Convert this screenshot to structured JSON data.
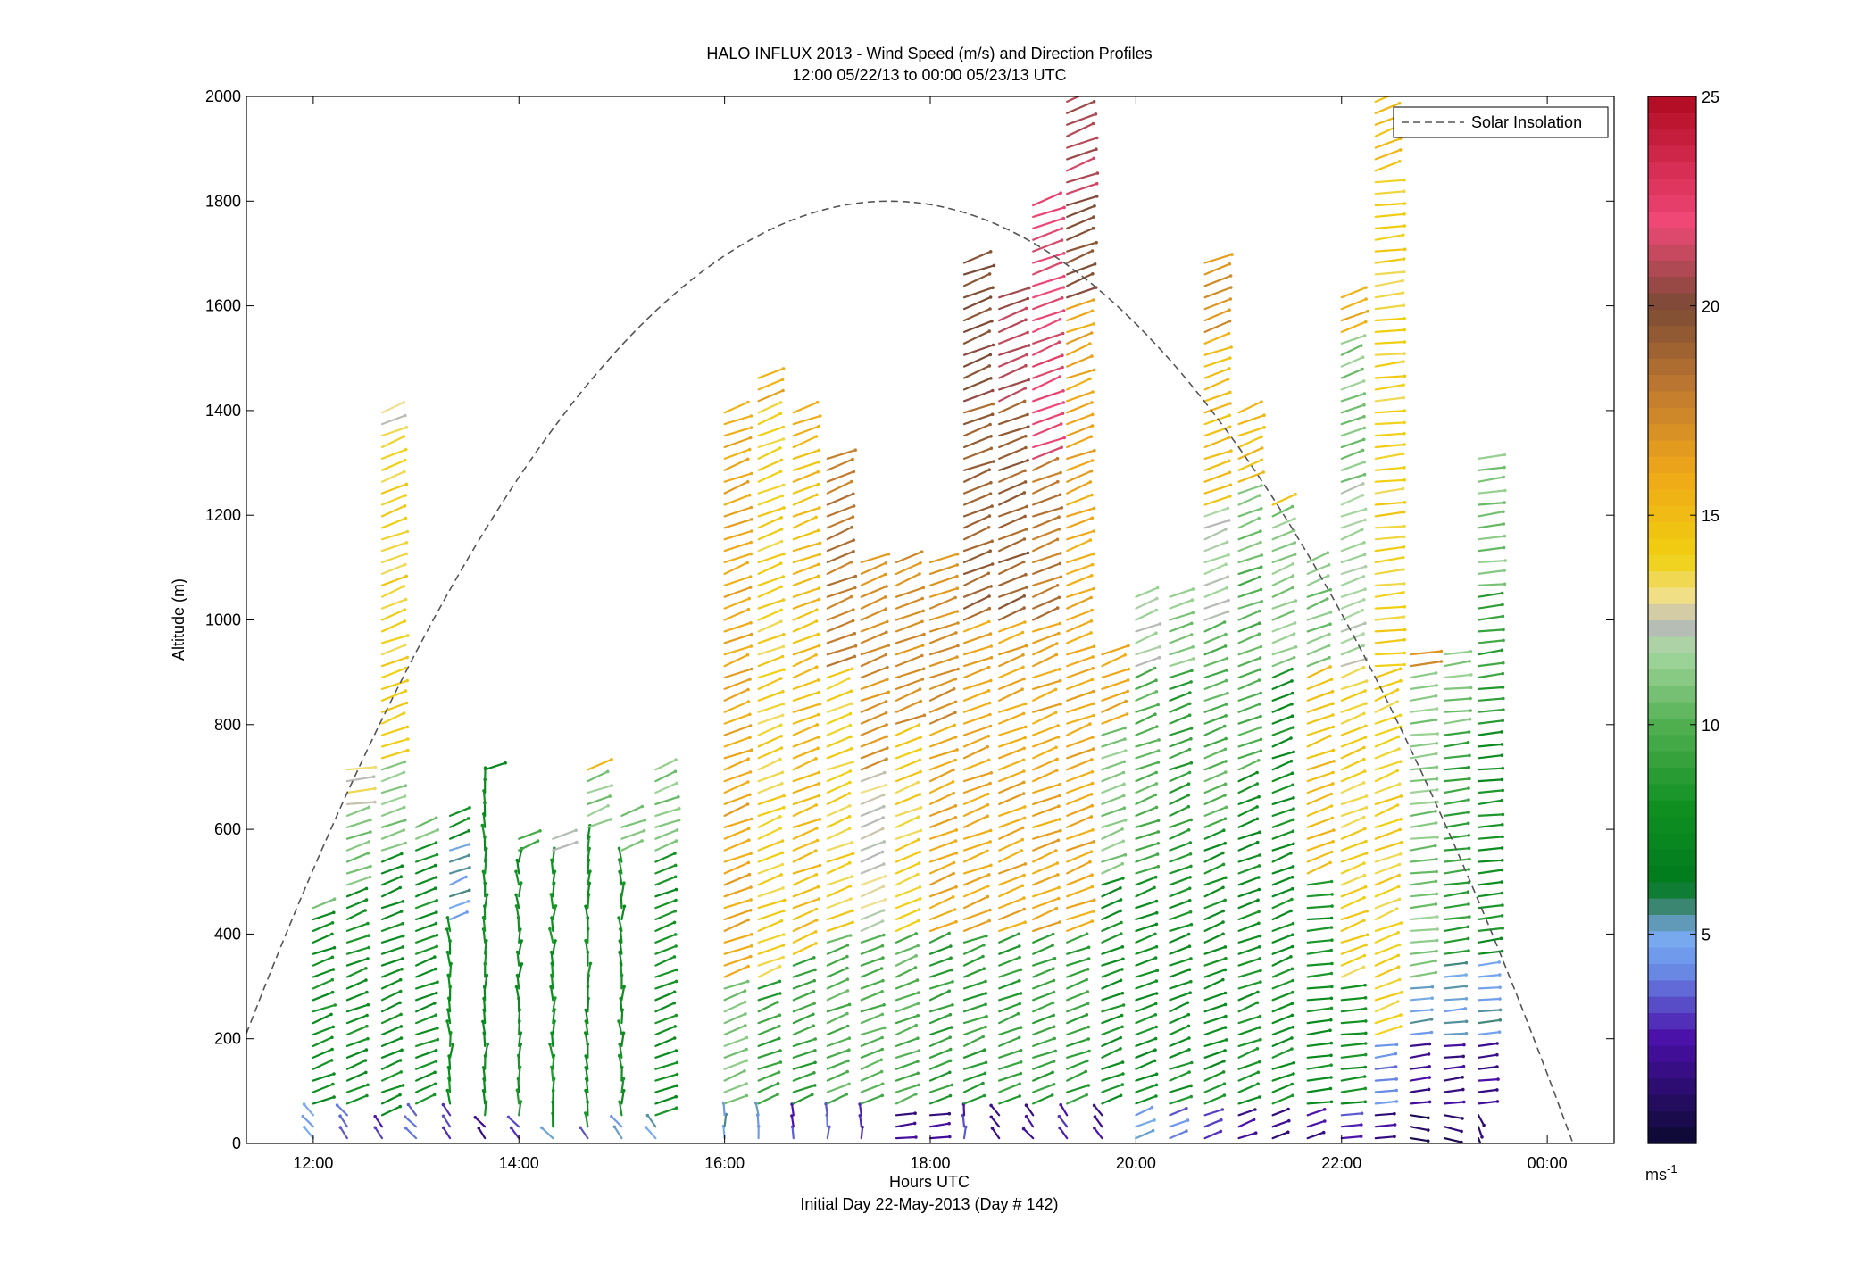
{
  "chart_data": {
    "type": "wind-barb-profile",
    "title": "HALO INFLUX 2013 - Wind Speed (m/s) and Direction Profiles",
    "subtitle": "12:00 05/22/13 to 00:00 05/23/13  UTC",
    "xlabel": "Hours UTC",
    "xlabel_sub": "Initial Day 22-May-2013 (Day # 142)",
    "ylabel": "Altitude (m)",
    "x_ticks": [
      "12:00",
      "14:00",
      "16:00",
      "18:00",
      "20:00",
      "22:00",
      "00:00"
    ],
    "x_tick_hours": [
      12,
      14,
      16,
      18,
      20,
      22,
      24
    ],
    "xlim_hours": [
      11.35,
      24.65
    ],
    "y_ticks": [
      0,
      200,
      400,
      600,
      800,
      1000,
      1200,
      1400,
      1600,
      1800,
      2000
    ],
    "ylim": [
      0,
      2000
    ],
    "legend": {
      "entries": [
        "Solar Insolation"
      ],
      "placement": "top-right",
      "style": "dashed"
    },
    "colorbar": {
      "min": 0,
      "max": 25,
      "ticks": [
        5,
        10,
        15,
        20,
        25
      ],
      "unit_label": "ms",
      "unit_exponent": "-1",
      "stops": [
        {
          "v": 0,
          "c": "#0b0a30"
        },
        {
          "v": 2.5,
          "c": "#4a0fa8"
        },
        {
          "v": 4.2,
          "c": "#6a8fe8"
        },
        {
          "v": 5,
          "c": "#7aaef0"
        },
        {
          "v": 5.5,
          "c": "#4d8a8a"
        },
        {
          "v": 6.2,
          "c": "#007a1e"
        },
        {
          "v": 8,
          "c": "#0e8f20"
        },
        {
          "v": 10,
          "c": "#50b050"
        },
        {
          "v": 11.8,
          "c": "#a9d8a2"
        },
        {
          "v": 12.4,
          "c": "#b8b8b8"
        },
        {
          "v": 13,
          "c": "#f0e090"
        },
        {
          "v": 14,
          "c": "#f0d010"
        },
        {
          "v": 16,
          "c": "#f0a818"
        },
        {
          "v": 18,
          "c": "#c07a30"
        },
        {
          "v": 20,
          "c": "#7a4a35"
        },
        {
          "v": 22,
          "c": "#f04878"
        },
        {
          "v": 25,
          "c": "#b00a20"
        }
      ]
    },
    "solar_insolation": {
      "start_hour": 11.35,
      "peak_hour": 17.6,
      "end_hour": 24.65,
      "peak_altitude_m": 1800
    },
    "profiles": [
      {
        "hour": 12.0,
        "top": 460,
        "segments": [
          [
            0,
            5,
            "NW"
          ],
          [
            60,
            8,
            "NE"
          ],
          [
            450,
            11,
            "NE"
          ]
        ]
      },
      {
        "hour": 12.33,
        "top": 720,
        "segments": [
          [
            0,
            4,
            "NW"
          ],
          [
            60,
            8,
            "NE"
          ],
          [
            480,
            11,
            "NE"
          ],
          [
            640,
            13,
            "E"
          ]
        ]
      },
      {
        "hour": 12.67,
        "top": 1400,
        "segments": [
          [
            0,
            3,
            "NW"
          ],
          [
            40,
            8,
            "NE"
          ],
          [
            560,
            11,
            "NE"
          ],
          [
            720,
            14,
            "NE"
          ],
          [
            1360,
            12.5,
            "NE"
          ]
        ]
      },
      {
        "hour": 13.0,
        "top": 620,
        "segments": [
          [
            0,
            4,
            "NW"
          ],
          [
            60,
            8,
            "NE"
          ],
          [
            580,
            11,
            "NE"
          ]
        ]
      },
      {
        "hour": 13.33,
        "top": 630,
        "segments": [
          [
            0,
            3,
            "NW"
          ],
          [
            60,
            8,
            "N"
          ],
          [
            420,
            5,
            "NE"
          ],
          [
            580,
            8,
            "NE"
          ]
        ]
      },
      {
        "hour": 13.67,
        "top": 730,
        "segments": [
          [
            0,
            2,
            "NW"
          ],
          [
            40,
            8,
            "N"
          ],
          [
            700,
            8,
            "NE"
          ]
        ]
      },
      {
        "hour": 14.0,
        "top": 600,
        "segments": [
          [
            0,
            3,
            "NW"
          ],
          [
            40,
            8,
            "N"
          ],
          [
            560,
            10,
            "NE"
          ]
        ]
      },
      {
        "hour": 14.33,
        "top": 600,
        "segments": [
          [
            0,
            5,
            "NW"
          ],
          [
            30,
            8,
            "N"
          ],
          [
            560,
            12,
            "NE"
          ]
        ]
      },
      {
        "hour": 14.67,
        "top": 730,
        "segments": [
          [
            0,
            4,
            "NW"
          ],
          [
            30,
            8,
            "N"
          ],
          [
            600,
            11,
            "NE"
          ],
          [
            700,
            15,
            "NE"
          ]
        ]
      },
      {
        "hour": 15.0,
        "top": 630,
        "segments": [
          [
            0,
            5,
            "NW"
          ],
          [
            40,
            8,
            "N"
          ],
          [
            560,
            11,
            "NE"
          ]
        ]
      },
      {
        "hour": 15.33,
        "top": 730,
        "segments": [
          [
            0,
            5,
            "NW"
          ],
          [
            40,
            8,
            "NE"
          ],
          [
            560,
            11,
            "NE"
          ]
        ]
      },
      {
        "hour": 16.0,
        "top": 1400,
        "segments": [
          [
            0,
            5,
            "N"
          ],
          [
            60,
            11,
            "NE"
          ],
          [
            300,
            16,
            "NE"
          ],
          [
            1350,
            16,
            "NE"
          ]
        ]
      },
      {
        "hour": 16.33,
        "top": 1480,
        "segments": [
          [
            0,
            5,
            "N"
          ],
          [
            60,
            9,
            "NE"
          ],
          [
            300,
            14,
            "NE"
          ],
          [
            1400,
            16,
            "NE"
          ]
        ]
      },
      {
        "hour": 16.67,
        "top": 1400,
        "segments": [
          [
            0,
            3,
            "N"
          ],
          [
            60,
            9,
            "NE"
          ],
          [
            350,
            15,
            "NE"
          ],
          [
            1350,
            16,
            "NE"
          ]
        ]
      },
      {
        "hour": 17.0,
        "top": 1320,
        "segments": [
          [
            0,
            4,
            "N"
          ],
          [
            60,
            10,
            "NE"
          ],
          [
            400,
            14,
            "NE"
          ],
          [
            900,
            18,
            "NE"
          ]
        ]
      },
      {
        "hour": 17.33,
        "top": 1130,
        "segments": [
          [
            0,
            3,
            "N"
          ],
          [
            60,
            10,
            "NE"
          ],
          [
            400,
            12.5,
            "NE"
          ],
          [
            700,
            17,
            "NE"
          ]
        ]
      },
      {
        "hour": 17.67,
        "top": 1130,
        "segments": [
          [
            0,
            2,
            "E"
          ],
          [
            60,
            10,
            "NE"
          ],
          [
            400,
            14,
            "NE"
          ],
          [
            800,
            17,
            "NE"
          ]
        ]
      },
      {
        "hour": 18.0,
        "top": 1130,
        "segments": [
          [
            0,
            2,
            "E"
          ],
          [
            60,
            9,
            "NE"
          ],
          [
            400,
            16,
            "NE"
          ],
          [
            800,
            17,
            "NE"
          ]
        ]
      },
      {
        "hour": 18.33,
        "top": 1700,
        "segments": [
          [
            0,
            3,
            "N"
          ],
          [
            60,
            9,
            "NE"
          ],
          [
            400,
            16,
            "NE"
          ],
          [
            1000,
            19,
            "NE"
          ],
          [
            1400,
            20,
            "NE"
          ]
        ]
      },
      {
        "hour": 18.67,
        "top": 1620,
        "segments": [
          [
            0,
            2,
            "NW"
          ],
          [
            60,
            9,
            "NE"
          ],
          [
            400,
            16,
            "NE"
          ],
          [
            1000,
            19,
            "NE"
          ],
          [
            1400,
            21,
            "NE"
          ]
        ]
      },
      {
        "hour": 19.0,
        "top": 1800,
        "segments": [
          [
            0,
            2,
            "NW"
          ],
          [
            60,
            9,
            "NE"
          ],
          [
            400,
            16,
            "NE"
          ],
          [
            1000,
            18,
            "NE"
          ],
          [
            1300,
            22,
            "NE"
          ]
        ]
      },
      {
        "hour": 19.33,
        "top": 1990,
        "segments": [
          [
            0,
            3,
            "NW"
          ],
          [
            60,
            9,
            "NE"
          ],
          [
            400,
            16,
            "NE"
          ],
          [
            1600,
            20,
            "NE"
          ],
          [
            1800,
            21,
            "NE"
          ]
        ]
      },
      {
        "hour": 19.67,
        "top": 940,
        "segments": [
          [
            0,
            2,
            "NW"
          ],
          [
            60,
            8,
            "NE"
          ],
          [
            500,
            11,
            "NE"
          ],
          [
            800,
            16,
            "NE"
          ]
        ]
      },
      {
        "hour": 20.0,
        "top": 1060,
        "segments": [
          [
            0,
            5,
            "NE"
          ],
          [
            60,
            8,
            "NE"
          ],
          [
            500,
            10,
            "NE"
          ],
          [
            900,
            12,
            "NE"
          ]
        ]
      },
      {
        "hour": 20.33,
        "top": 1060,
        "segments": [
          [
            0,
            4,
            "NE"
          ],
          [
            60,
            8,
            "NE"
          ],
          [
            500,
            9,
            "NE"
          ],
          [
            900,
            11,
            "NE"
          ]
        ]
      },
      {
        "hour": 20.67,
        "top": 1700,
        "segments": [
          [
            0,
            3,
            "NE"
          ],
          [
            60,
            8,
            "NE"
          ],
          [
            600,
            10,
            "NE"
          ],
          [
            1000,
            12,
            "NE"
          ],
          [
            1200,
            15,
            "NE"
          ],
          [
            1550,
            17,
            "NE"
          ]
        ]
      },
      {
        "hour": 21.0,
        "top": 1400,
        "segments": [
          [
            0,
            2,
            "NE"
          ],
          [
            60,
            8,
            "NE"
          ],
          [
            700,
            10,
            "NE"
          ],
          [
            1100,
            11,
            "NE"
          ],
          [
            1250,
            15,
            "NE"
          ]
        ]
      },
      {
        "hour": 21.33,
        "top": 1240,
        "segments": [
          [
            0,
            2,
            "NE"
          ],
          [
            60,
            8,
            "NE"
          ],
          [
            900,
            11,
            "NE"
          ],
          [
            1200,
            15,
            "NE"
          ]
        ]
      },
      {
        "hour": 21.67,
        "top": 1130,
        "segments": [
          [
            0,
            2,
            "NE"
          ],
          [
            60,
            8,
            "E"
          ],
          [
            500,
            15,
            "NE"
          ],
          [
            900,
            11,
            "NE"
          ]
        ]
      },
      {
        "hour": 22.0,
        "top": 1620,
        "segments": [
          [
            0,
            3,
            "E"
          ],
          [
            60,
            8,
            "E"
          ],
          [
            300,
            14,
            "NE"
          ],
          [
            900,
            12,
            "NE"
          ],
          [
            1250,
            11,
            "NE"
          ],
          [
            1550,
            16,
            "NE"
          ]
        ]
      },
      {
        "hour": 22.33,
        "top": 1990,
        "segments": [
          [
            0,
            2,
            "E"
          ],
          [
            60,
            4,
            "E"
          ],
          [
            200,
            14,
            "NE"
          ],
          [
            900,
            14,
            "E"
          ],
          [
            1850,
            15,
            "NE"
          ]
        ]
      },
      {
        "hour": 22.67,
        "top": 950,
        "segments": [
          [
            0,
            1,
            "SE"
          ],
          [
            60,
            2,
            "E"
          ],
          [
            200,
            5,
            "E"
          ],
          [
            300,
            11,
            "E"
          ],
          [
            900,
            17,
            "E"
          ]
        ]
      },
      {
        "hour": 23.0,
        "top": 950,
        "segments": [
          [
            0,
            1,
            "SE"
          ],
          [
            60,
            2,
            "E"
          ],
          [
            200,
            5,
            "E"
          ],
          [
            350,
            9,
            "E"
          ],
          [
            800,
            11,
            "E"
          ]
        ]
      },
      {
        "hour": 23.33,
        "top": 1320,
        "segments": [
          [
            0,
            1,
            "S"
          ],
          [
            60,
            2,
            "E"
          ],
          [
            200,
            5,
            "E"
          ],
          [
            350,
            8,
            "E"
          ],
          [
            800,
            9,
            "E"
          ],
          [
            1050,
            11,
            "E"
          ]
        ]
      }
    ]
  }
}
